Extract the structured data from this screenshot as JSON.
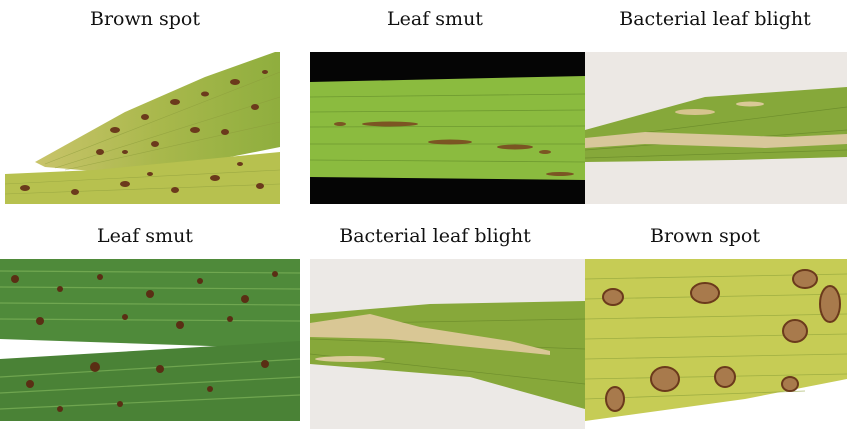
{
  "figure": {
    "panels": [
      {
        "label": "Brown spot"
      },
      {
        "label": "Leaf smut"
      },
      {
        "label": "Bacterial leaf blight"
      },
      {
        "label": "Leaf smut"
      },
      {
        "label": "Bacterial leaf blight"
      },
      {
        "label": "Brown spot"
      }
    ]
  }
}
